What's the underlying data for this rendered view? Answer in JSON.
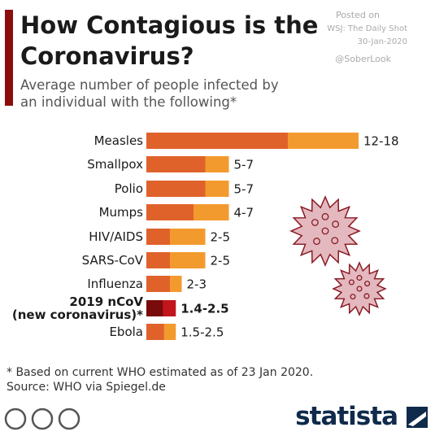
{
  "header": {
    "title": "How Contagious is the Coronavirus?",
    "subtitle": "Average number of people infected by an individual with the following*",
    "posted": "Posted on",
    "posted_source": "WSJ: The Daily Shot",
    "posted_date": "30-Jan-2020",
    "handle": "@SoberLook"
  },
  "chart_data": {
    "type": "range-bar",
    "categories": [
      "Measles",
      "Smallpox",
      "Polio",
      "Mumps",
      "HIV/AIDS",
      "SARS-CoV",
      "Influenza",
      "2019 nCoV\n(new coronavirus)*",
      "Ebola"
    ],
    "series": [
      {
        "colors": [
          "#f39a2e",
          "#f39a2e",
          "#f39a2e",
          "#f39a2e",
          "#f39a2e",
          "#f39a2e",
          "#f39a2e",
          "#c2151d",
          "#f39a2e"
        ],
        "values": [
          18,
          7,
          7,
          7,
          5,
          5,
          3,
          2.5,
          2.5
        ],
        "value_labels": [
          "12-18",
          "5-7",
          "5-7",
          "4-7",
          "2-5",
          "2-5",
          "2-3",
          "1.4-2.5",
          "1.5-2.5"
        ]
      },
      {
        "colors": [
          "#e0622b",
          "#e0622b",
          "#e0622b",
          "#e0622b",
          "#e0622b",
          "#e0622b",
          "#e0622b",
          "#7a0b0b",
          "#e0622b"
        ],
        "values": [
          12,
          5,
          5,
          4,
          2,
          2,
          2,
          1.4,
          1.5
        ]
      }
    ]
  },
  "footer": {
    "note": "* Based on current WHO estimated as of 23 Jan 2020.",
    "source": "Source: WHO via Spiegel.de",
    "brand": "statista"
  }
}
